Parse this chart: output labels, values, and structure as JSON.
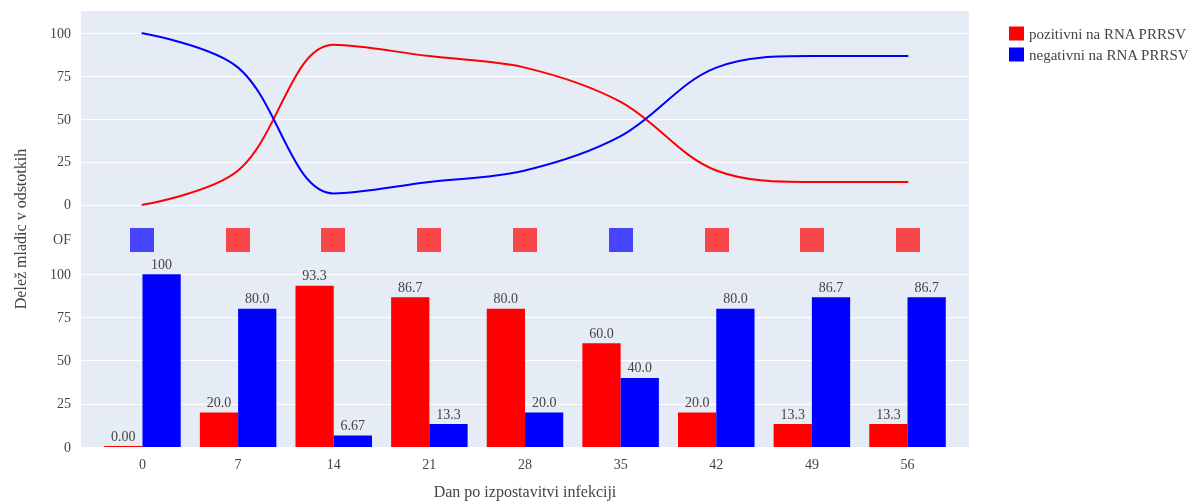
{
  "chart_data": [
    {
      "type": "line",
      "x": [
        0,
        7,
        14,
        21,
        28,
        35,
        42,
        49,
        56
      ],
      "series": [
        {
          "color": "#ff0000",
          "values": [
            0,
            20,
            93.3,
            86.7,
            80,
            60,
            20,
            13.3,
            13.3
          ]
        },
        {
          "color": "#0000ff",
          "values": [
            100,
            80,
            6.67,
            13.3,
            20,
            40,
            80,
            86.7,
            86.7
          ]
        }
      ],
      "xlim": [
        -4.5,
        60.5
      ],
      "ylim": [
        -10,
        113
      ],
      "yticks": [
        0,
        25,
        50,
        75,
        100
      ],
      "grid": "y",
      "marker": "none",
      "tick_labels": "y"
    },
    {
      "type": "other",
      "categories": [
        null,
        null,
        null,
        null,
        null,
        null,
        null,
        null,
        null
      ],
      "colors": [
        "#4545fc",
        "#f7474a",
        "#f7474a",
        "#f7474a",
        "#f7474a",
        "#4545fc",
        "#f7474a",
        "#f7474a",
        "#f7474a"
      ],
      "annotations": [
        "OF"
      ]
    },
    {
      "type": "bar",
      "x": [
        0,
        7,
        14,
        21,
        28,
        35,
        42,
        49,
        56
      ],
      "series": [
        {
          "name": "pozitivni na RNA PRRSV",
          "color": "#ff0000",
          "values": [
            0,
            20,
            93.3,
            86.7,
            80,
            60,
            20,
            13.3,
            13.3
          ],
          "value_labels": [
            "0.00",
            "20.0",
            "93.3",
            "86.7",
            "80.0",
            "60.0",
            "20.0",
            "13.3",
            "13.3"
          ]
        },
        {
          "name": "negativni na RNA PRRSV",
          "color": "#0000ff",
          "values": [
            100,
            80,
            6.67,
            13.3,
            20,
            40,
            80,
            86.7,
            86.7
          ],
          "value_labels": [
            "100",
            "80.0",
            "6.67",
            "13.3",
            "20.0",
            "40.0",
            "80.0",
            "86.7",
            "86.7"
          ]
        }
      ],
      "xlabel": "Dan po izpostavitvi infekciji",
      "ylabel": "Delež mladic v odstotkih",
      "xlim": [
        -4.5,
        60.5
      ],
      "xticks": [
        0,
        7,
        14,
        21,
        28,
        35,
        42,
        49,
        56
      ],
      "ylim": [
        0,
        110
      ],
      "yticks": [
        0,
        25,
        50,
        75,
        100
      ],
      "grid": "y",
      "legend": "top right"
    }
  ]
}
